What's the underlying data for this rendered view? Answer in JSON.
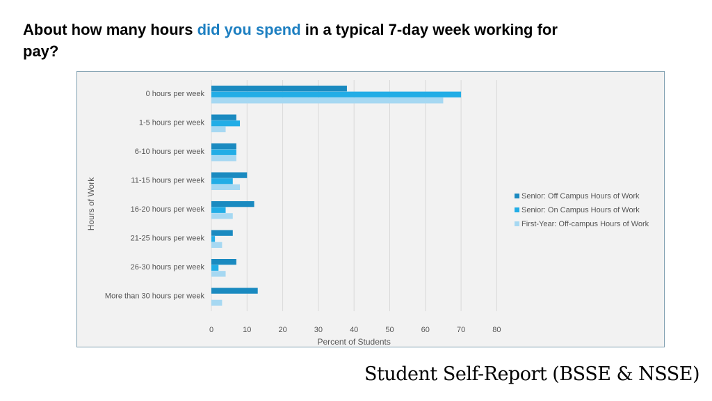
{
  "title": {
    "before": "About how many hours ",
    "highlight": "did you spend",
    "after": " in a typical 7-day week working for pay?",
    "highlight_color": "#1d7fc1"
  },
  "footer": "Student Self-Report (BSSE & NSSE)",
  "chart_data": {
    "type": "bar",
    "orientation": "horizontal",
    "categories": [
      "0 hours per week",
      "1-5 hours per week",
      "6-10 hours per week",
      "11-15 hours per week",
      "16-20 hours per week",
      "21-25 hours per week",
      "26-30 hours per week",
      "More than 30 hours per week"
    ],
    "series": [
      {
        "name": "Senior:  Off Campus Hours of Work",
        "color": "#1a8ac0",
        "values": [
          38,
          7,
          7,
          10,
          12,
          6,
          7,
          13
        ]
      },
      {
        "name": "Senior:  On Campus Hours of Work",
        "color": "#22ade6",
        "values": [
          70,
          8,
          7,
          6,
          4,
          1,
          2,
          0
        ]
      },
      {
        "name": "First-Year:  Off-campus Hours of Work",
        "color": "#a6d8f2",
        "values": [
          65,
          4,
          7,
          8,
          6,
          3,
          4,
          3
        ]
      }
    ],
    "xlabel": "Percent of Students",
    "ylabel": "Hours  of Work",
    "xlim": [
      0,
      80
    ],
    "xticks": [
      0,
      10,
      20,
      30,
      40,
      50,
      60,
      70,
      80
    ],
    "grid": true,
    "legend_position": "right"
  }
}
